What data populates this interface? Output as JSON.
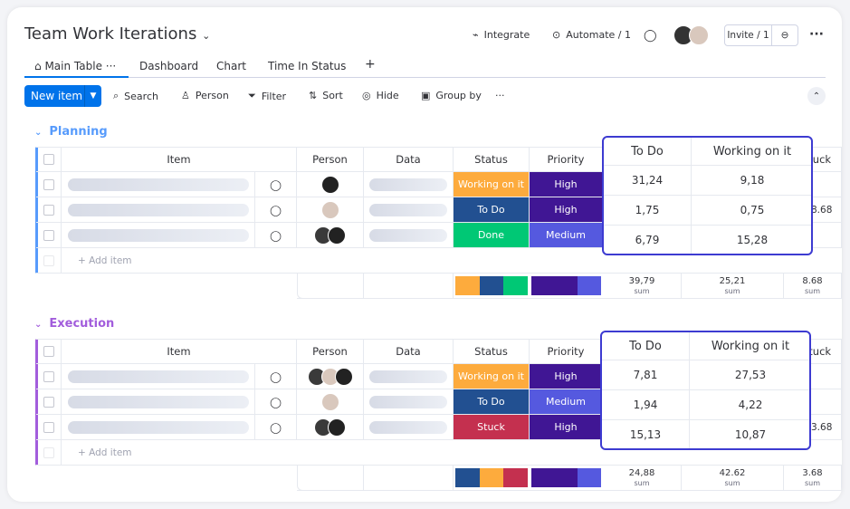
{
  "header": {
    "title": "Team Work Iterations",
    "integrate": "Integrate",
    "automate": "Automate / 1",
    "invite": "Invite / 1"
  },
  "tabs": [
    {
      "label": "Main Table"
    },
    {
      "label": "Dashboard"
    },
    {
      "label": "Chart"
    },
    {
      "label": "Time In Status"
    }
  ],
  "toolbar": {
    "new_item": "New item",
    "search": "Search",
    "person": "Person",
    "filter": "Filter",
    "sort": "Sort",
    "hide": "Hide",
    "group_by": "Group by"
  },
  "columns": {
    "item": "Item",
    "person": "Person",
    "data": "Data",
    "status": "Status",
    "priority": "Priority",
    "todo": "To Do",
    "working": "Working on it",
    "stuck": "Stuck"
  },
  "add_item": "+ Add item",
  "sum_label": "sum",
  "colors": {
    "Working on it": "#fdab3d",
    "To Do": "#225091",
    "Done": "#00c875",
    "Stuck": "#c4304f",
    "High": "#401694",
    "Medium": "#5559df",
    "accent": "#0073ea",
    "popup_border": "#3d3bd1"
  },
  "groups": [
    {
      "name": "Planning",
      "color": "#579bfc",
      "rows": [
        {
          "people": [
            "man-glasses"
          ],
          "status": "Working on it",
          "priority": "High",
          "todo": "31,24",
          "working": "9,18",
          "stuck": ""
        },
        {
          "people": [
            "woman"
          ],
          "status": "To Do",
          "priority": "High",
          "todo": "1,75",
          "working": "0,75",
          "stuck": "8.68"
        },
        {
          "people": [
            "man",
            "man-glasses"
          ],
          "status": "Done",
          "priority": "Medium",
          "todo": "6,79",
          "working": "15,28",
          "stuck": ""
        }
      ],
      "status_summary": [
        "Working on it",
        "To Do",
        "Done"
      ],
      "priority_summary": [
        "High",
        "High",
        "Medium"
      ],
      "sums": {
        "todo": "39,79",
        "working": "25,21",
        "stuck": "8.68"
      }
    },
    {
      "name": "Execution",
      "color": "#a25ddc",
      "rows": [
        {
          "people": [
            "man",
            "woman",
            "man-glasses"
          ],
          "status": "Working on it",
          "priority": "High",
          "todo": "7,81",
          "working": "27,53",
          "stuck": ""
        },
        {
          "people": [
            "woman"
          ],
          "status": "To Do",
          "priority": "Medium",
          "todo": "1,94",
          "working": "4,22",
          "stuck": ""
        },
        {
          "people": [
            "man",
            "man-glasses"
          ],
          "status": "Stuck",
          "priority": "High",
          "todo": "15,13",
          "working": "10,87",
          "stuck": "3.68"
        }
      ],
      "status_summary": [
        "To Do",
        "Working on it",
        "Stuck"
      ],
      "priority_summary": [
        "High",
        "High",
        "Medium"
      ],
      "sums": {
        "todo": "24,88",
        "working": "42.62",
        "stuck": "3.68"
      }
    }
  ]
}
